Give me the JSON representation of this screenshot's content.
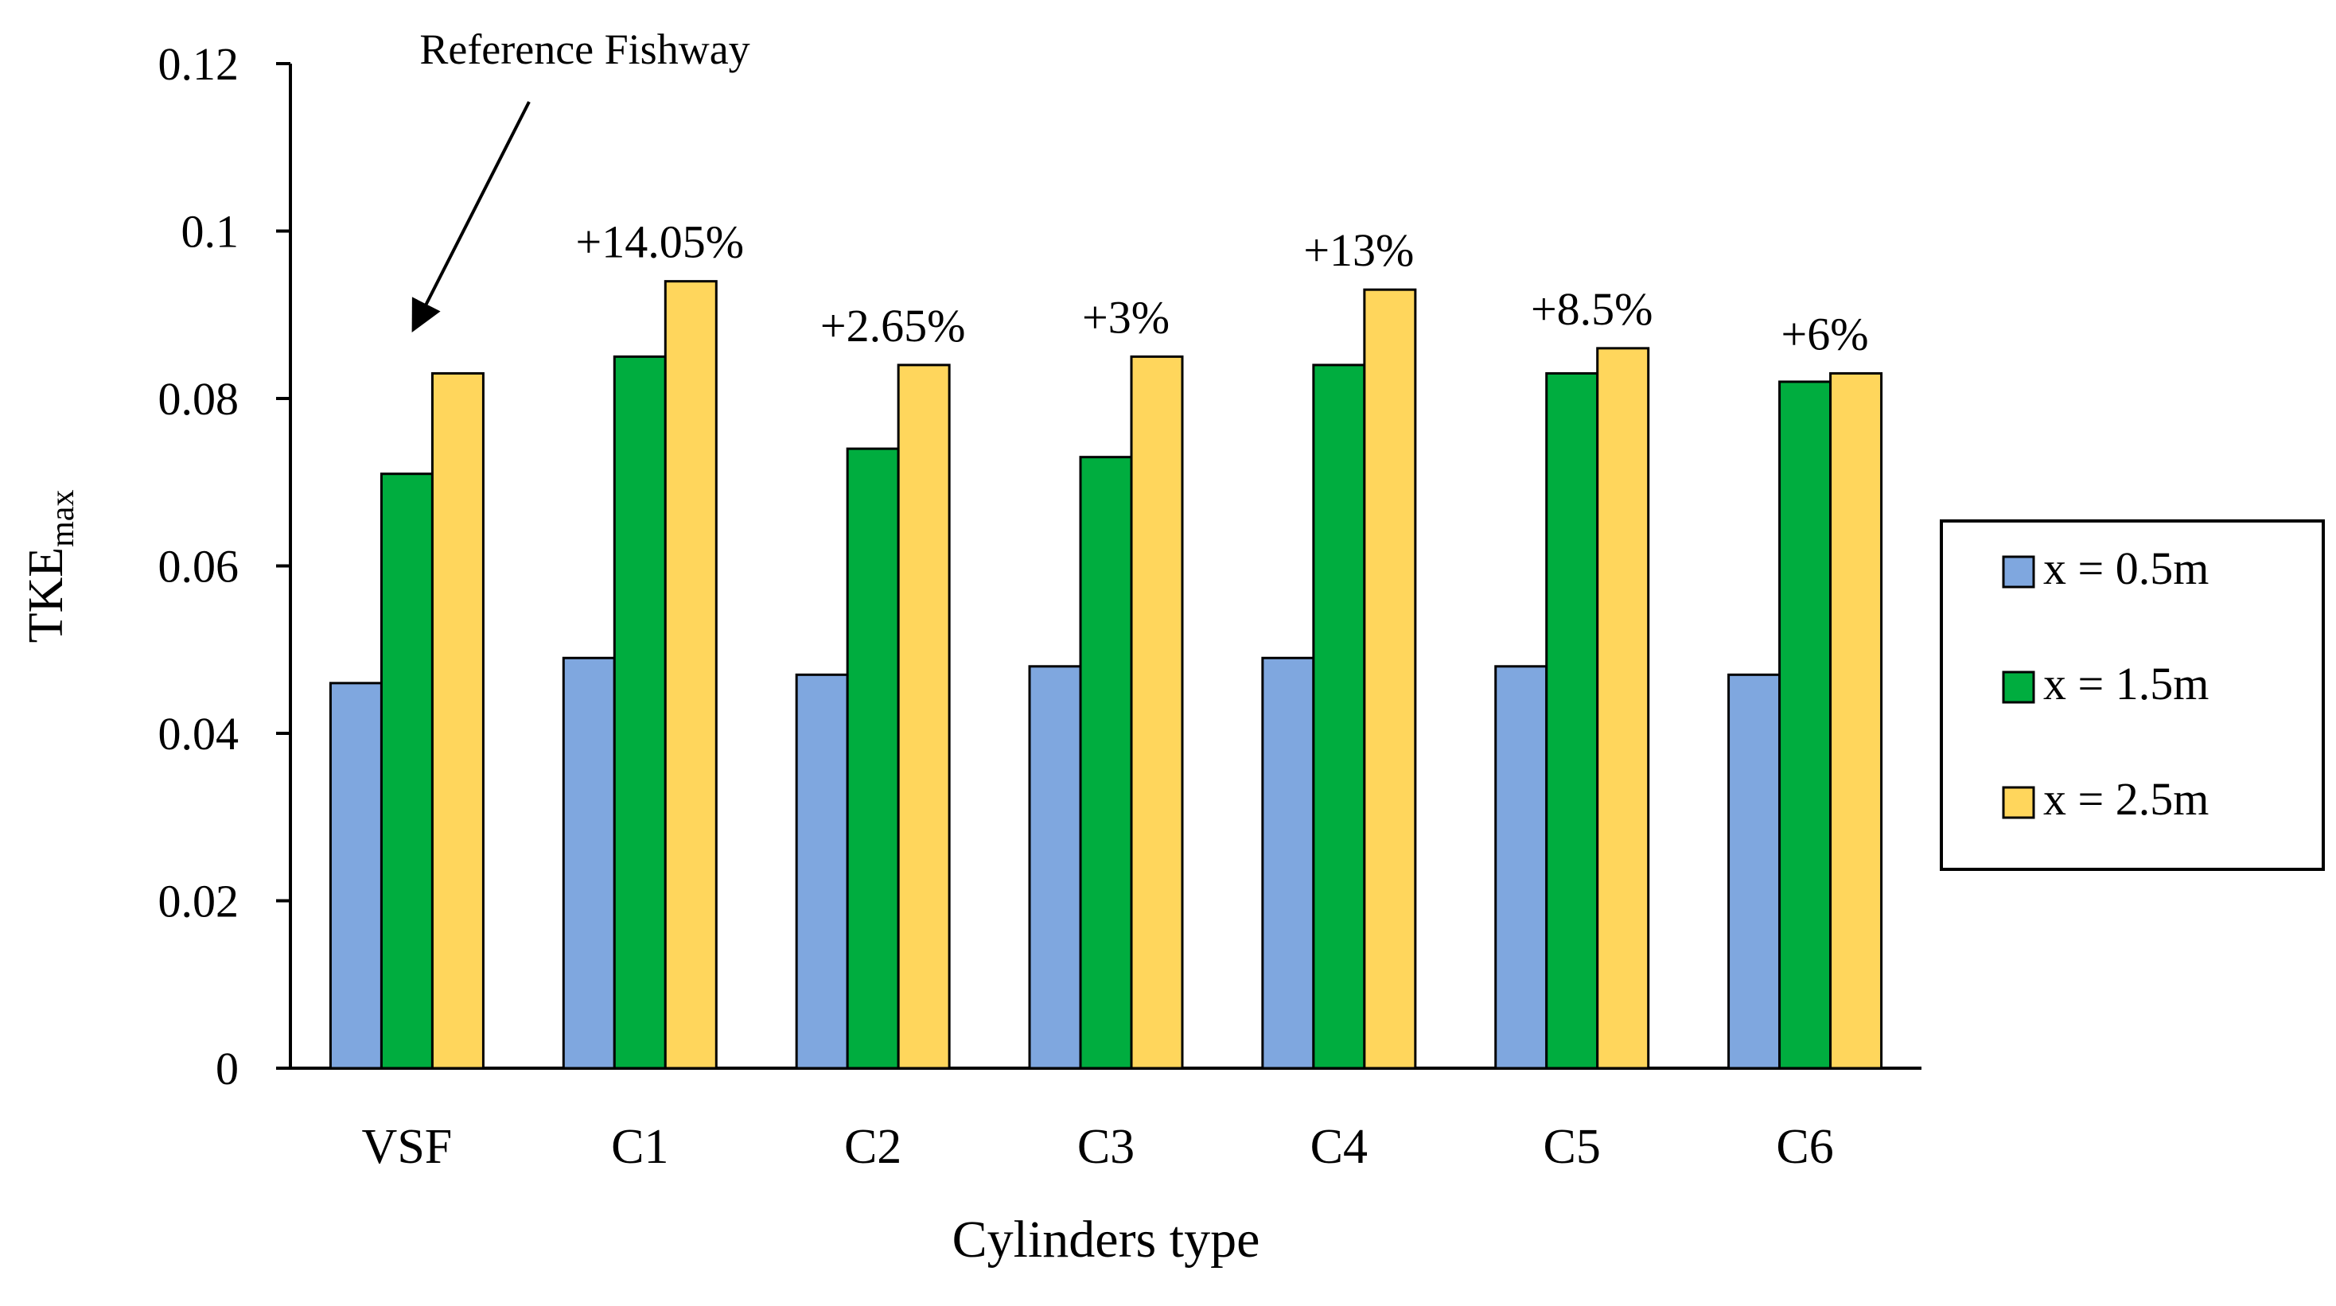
{
  "chart_data": {
    "type": "bar",
    "title": "",
    "xlabel": "Cylinders type",
    "ylabel": {
      "main": "TKE",
      "sub": "max"
    },
    "ylim": [
      0,
      0.12
    ],
    "yticks": [
      "0",
      "0.02",
      "0.04",
      "0.06",
      "0.08",
      "0.1",
      "0.12"
    ],
    "ytick_values": [
      0,
      0.02,
      0.04,
      0.06,
      0.08,
      0.1,
      0.12
    ],
    "grid": false,
    "legend_position": "right",
    "categories": [
      "VSF",
      "C1",
      "C2",
      "C3",
      "C4",
      "C5",
      "C6"
    ],
    "series": [
      {
        "name": "x = 0.5m",
        "color": "#7FA7DF",
        "values": [
          0.046,
          0.049,
          0.047,
          0.048,
          0.049,
          0.048,
          0.047
        ]
      },
      {
        "name": "x = 1.5m",
        "color": "#00AD3F",
        "values": [
          0.071,
          0.085,
          0.074,
          0.073,
          0.084,
          0.083,
          0.082
        ]
      },
      {
        "name": "x = 2.5m",
        "color": "#FFD65C",
        "values": [
          0.083,
          0.094,
          0.084,
          0.085,
          0.093,
          0.086,
          0.083
        ]
      }
    ],
    "bar_annotations": [
      "",
      "+14.05%",
      "+2.65%",
      "+3%",
      "+13%",
      "+8.5%",
      "+6%"
    ],
    "reference_annotation": {
      "text": "Reference Fishway",
      "category": "VSF"
    }
  }
}
